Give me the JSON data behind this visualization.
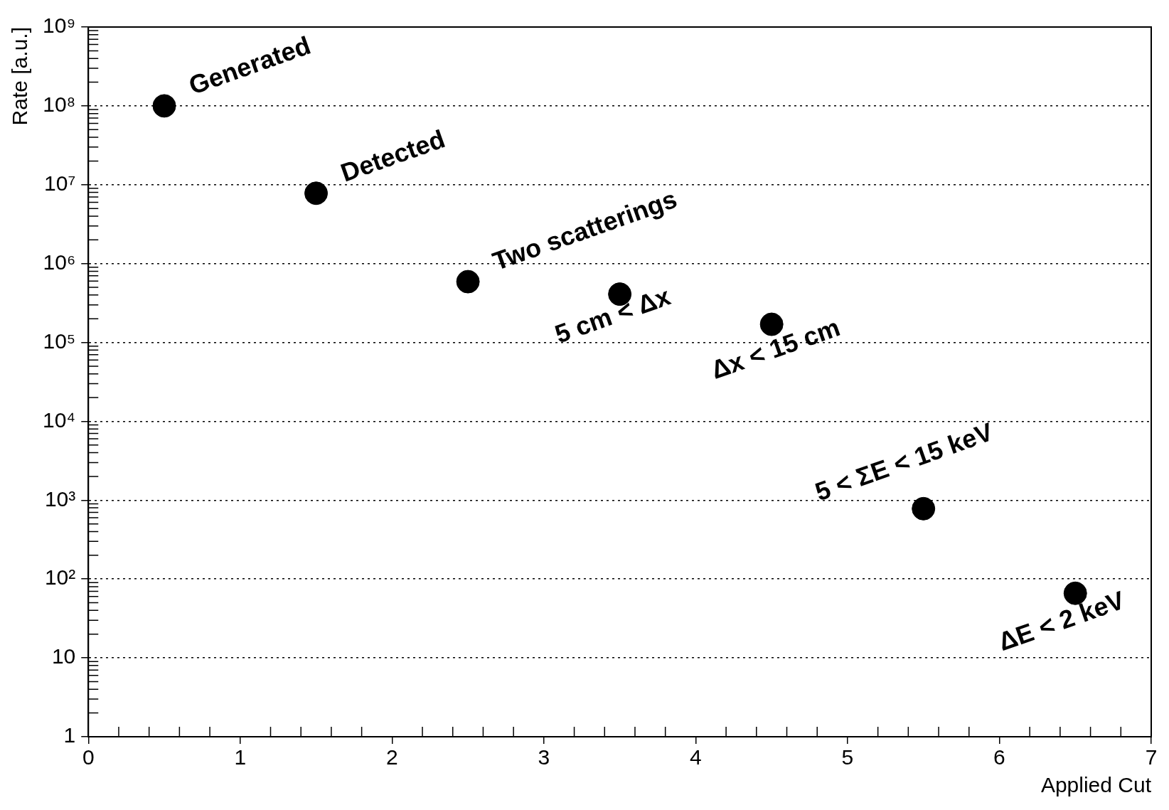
{
  "chart_data": {
    "type": "scatter",
    "xlabel": "Applied Cut",
    "ylabel": "Rate [a.u.]",
    "x": [
      0.5,
      1.5,
      2.5,
      3.5,
      4.5,
      5.5,
      6.5
    ],
    "values": [
      100000000,
      7800000,
      590000,
      410000,
      170000,
      780,
      66
    ],
    "color": "#000000",
    "marker": "circle",
    "log": "y",
    "grid": "y",
    "xlim": [
      0,
      7
    ],
    "xticks": [
      0,
      1,
      2,
      3,
      4,
      5,
      6,
      7
    ],
    "ylim": [
      1,
      1000000000
    ],
    "yticks": [
      1,
      10,
      {
        "value": 100,
        "label": "10²"
      },
      {
        "value": 1000,
        "label": "10³"
      },
      {
        "value": 10000,
        "label": "10⁴"
      },
      {
        "value": 100000,
        "label": "10⁵"
      },
      {
        "value": 1000000,
        "label": "10⁶"
      },
      {
        "value": 10000000,
        "label": "10⁷"
      },
      {
        "value": 100000000,
        "label": "10⁸"
      },
      {
        "value": 1000000000,
        "label": "10⁹"
      }
    ],
    "annotations": [
      {
        "text": "Generated",
        "x": 0.5,
        "y": 100000000
      },
      {
        "text": "Detected",
        "x": 1.5,
        "y": 7800000
      },
      {
        "text": "Two scatterings",
        "x": 2.5,
        "y": 590000
      },
      {
        "text": "5 cm < Δx",
        "x": 3.5,
        "y": 410000
      },
      {
        "text": "Δx < 15 cm",
        "x": 4.5,
        "y": 170000
      },
      {
        "text": "5 < ΣE < 15 keV",
        "x": 5.5,
        "y": 780
      },
      {
        "text": "ΔE < 2 keV",
        "x": 6.5,
        "y": 66
      }
    ]
  }
}
